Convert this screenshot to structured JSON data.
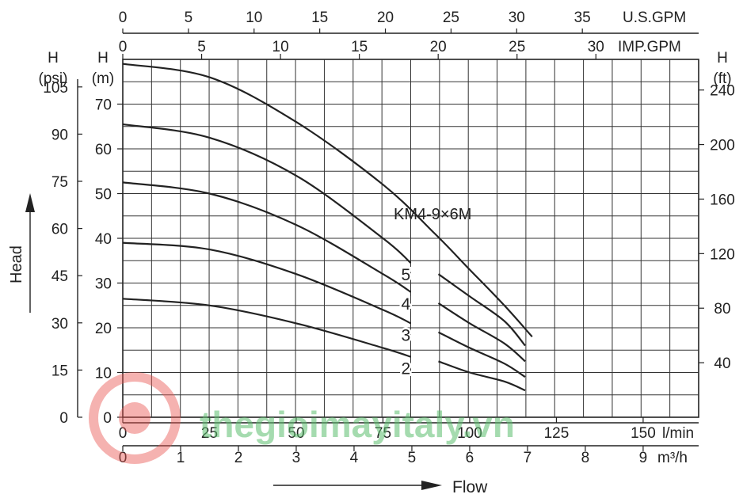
{
  "chart_data": {
    "type": "line",
    "title": "",
    "model_label": "KM4-9×6M",
    "axes": {
      "flow_lpm": {
        "unit": "l/min",
        "ticks": [
          "0",
          "25",
          "50",
          "75",
          "100",
          "125",
          "150"
        ],
        "range": [
          0,
          166
        ]
      },
      "flow_m3h": {
        "unit": "m³/h",
        "ticks": [
          "0",
          "1",
          "2",
          "3",
          "4",
          "5",
          "6",
          "7",
          "8",
          "9"
        ],
        "range": [
          0,
          9.96
        ]
      },
      "flow_usgpm": {
        "unit": "U.S.GPM",
        "ticks": [
          "0",
          "5",
          "10",
          "15",
          "20",
          "25",
          "30",
          "35"
        ]
      },
      "flow_impgpm": {
        "unit": "IMP.GPM",
        "ticks": [
          "0",
          "5",
          "10",
          "15",
          "20",
          "25",
          "30"
        ]
      },
      "head_m": {
        "unit_top": "H",
        "unit_bottom": "(m)",
        "ticks": [
          "0",
          "10",
          "20",
          "30",
          "40",
          "50",
          "60",
          "70"
        ],
        "range": [
          0,
          80
        ]
      },
      "head_psi": {
        "unit_top": "H",
        "unit_bottom": "(psi)",
        "ticks": [
          "0",
          "15",
          "30",
          "45",
          "60",
          "75",
          "90",
          "105"
        ]
      },
      "head_ft": {
        "unit_top": "H",
        "unit_bottom": "(ft)",
        "ticks": [
          "40",
          "80",
          "120",
          "160",
          "200",
          "240"
        ]
      }
    },
    "xlabel": "Flow",
    "ylabel": "Head",
    "grid": true,
    "series": [
      {
        "name": "2",
        "segments": [
          {
            "x": [
              0,
              25,
              50,
              75,
              83
            ],
            "y": [
              26.5,
              25,
              21,
              15.5,
              13.5
            ]
          },
          {
            "x": [
              91,
              100,
              110,
              116
            ],
            "y": [
              12.5,
              10,
              8,
              6
            ]
          }
        ]
      },
      {
        "name": "3",
        "segments": [
          {
            "x": [
              0,
              25,
              50,
              75,
              83
            ],
            "y": [
              39,
              37.5,
              32,
              24,
              21
            ]
          },
          {
            "x": [
              91,
              100,
              110,
              116
            ],
            "y": [
              19,
              15.5,
              12,
              9
            ]
          }
        ]
      },
      {
        "name": "4",
        "segments": [
          {
            "x": [
              0,
              25,
              50,
              75,
              83
            ],
            "y": [
              52.5,
              50,
              43,
              32,
              28
            ]
          },
          {
            "x": [
              91,
              100,
              110,
              116
            ],
            "y": [
              25.5,
              21,
              16.5,
              12.5
            ]
          }
        ]
      },
      {
        "name": "5",
        "segments": [
          {
            "x": [
              0,
              25,
              50,
              75,
              83
            ],
            "y": [
              65.5,
              62.5,
              54,
              40,
              34.5
            ]
          },
          {
            "x": [
              91,
              100,
              110,
              116
            ],
            "y": [
              32,
              27,
              21.5,
              16
            ]
          }
        ]
      },
      {
        "name": "",
        "segments": [
          {
            "x": [
              0,
              25,
              50,
              75,
              90,
              100,
              110,
              118
            ],
            "y": [
              79,
              76,
              66,
              52,
              41,
              33,
              25,
              18
            ]
          }
        ]
      }
    ]
  },
  "watermark": {
    "text": "thegioimayitaly.vn",
    "color": "#5cbf6e",
    "logo_color": "#e8554f"
  }
}
